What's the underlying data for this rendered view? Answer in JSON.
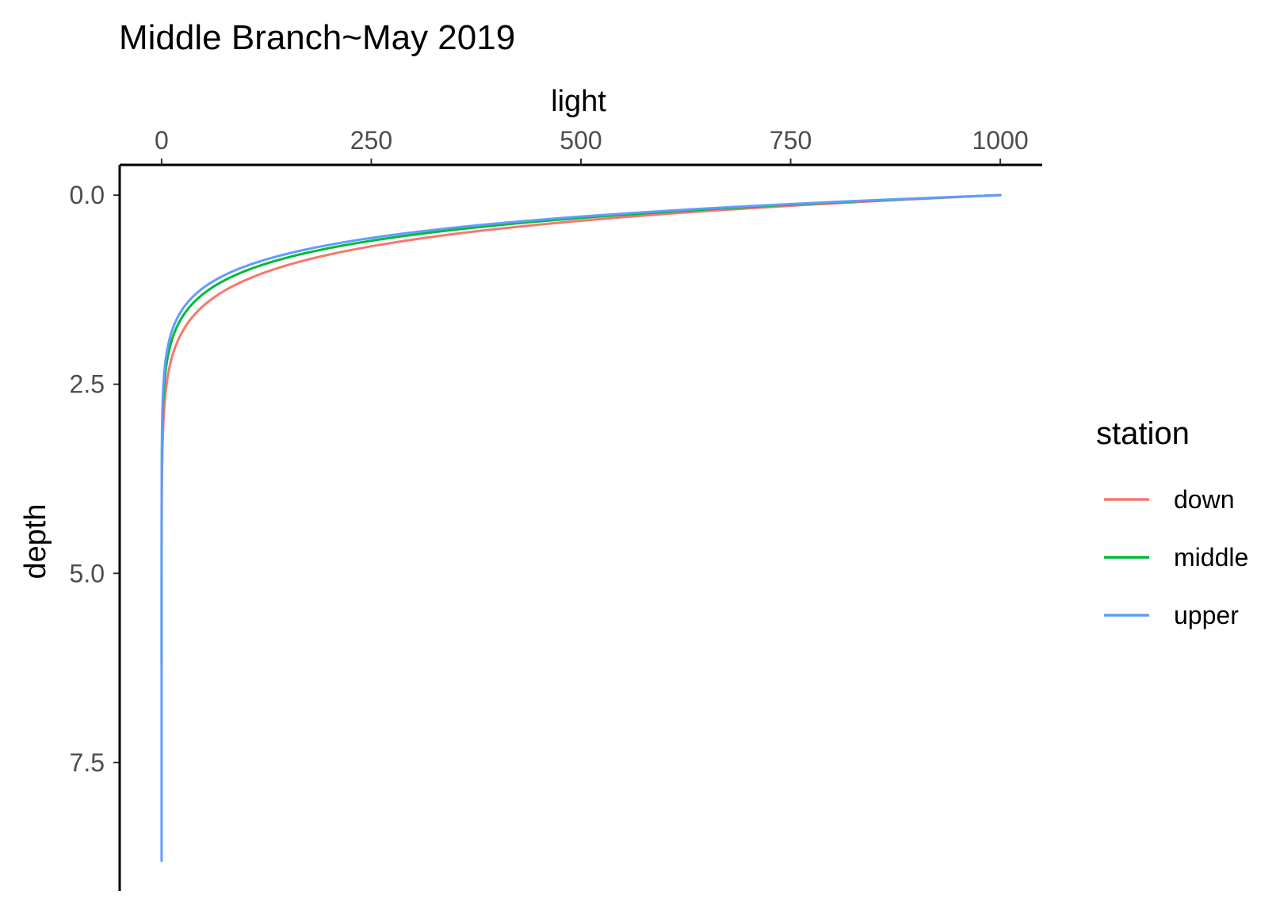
{
  "chart_data": {
    "type": "line",
    "title": "Middle Branch~May 2019",
    "xlabel": "light",
    "ylabel": "depth",
    "x_axis_position": "top",
    "y_axis_reversed": true,
    "xlim": [
      -50,
      1050
    ],
    "ylim": [
      -0.4,
      9.2
    ],
    "x_ticks": [
      0,
      250,
      500,
      750,
      1000
    ],
    "x_tick_labels": [
      "0",
      "250",
      "500",
      "750",
      "1000"
    ],
    "y_ticks": [
      0,
      2.5,
      5,
      7.5
    ],
    "y_tick_labels": [
      "0.0",
      "2.5",
      "5.0",
      "7.5"
    ],
    "grid": false,
    "legend": {
      "title": "station",
      "position": "right"
    },
    "model": "light = 1000 * exp(-k * depth)",
    "series": [
      {
        "name": "down",
        "color": "#F8766D",
        "k": 2.05,
        "max_depth": 4.3
      },
      {
        "name": "middle",
        "color": "#00BA38",
        "k": 2.3,
        "max_depth": 6.2
      },
      {
        "name": "upper",
        "color": "#619CFF",
        "k": 2.45,
        "max_depth": 8.8
      }
    ]
  }
}
